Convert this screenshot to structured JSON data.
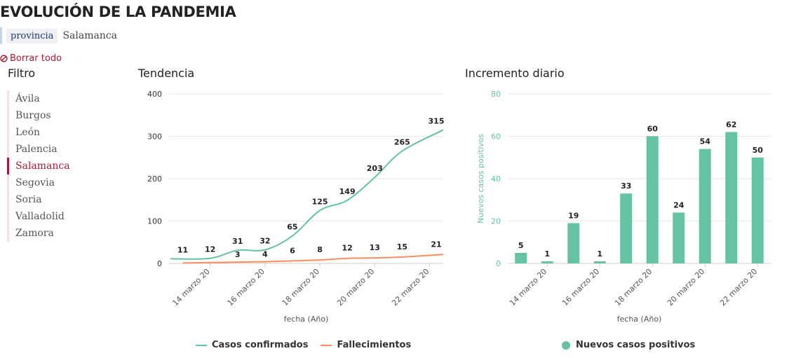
{
  "page": {
    "title": "EVOLUCIÓN DE LA PANDEMIA",
    "filter_chip": {
      "key": "provincia",
      "value": "Salamanca"
    },
    "clear_all": "Borrar todo",
    "filter_heading": "Filtro"
  },
  "provinces": [
    {
      "label": "Ávila",
      "active": false
    },
    {
      "label": "Burgos",
      "active": false
    },
    {
      "label": "León",
      "active": false
    },
    {
      "label": "Palencia",
      "active": false
    },
    {
      "label": "Salamanca",
      "active": true
    },
    {
      "label": "Segovia",
      "active": false
    },
    {
      "label": "Soria",
      "active": false
    },
    {
      "label": "Valladolid",
      "active": false
    },
    {
      "label": "Zamora",
      "active": false
    }
  ],
  "colors": {
    "cases": "#66c2a5",
    "deaths": "#fc8d62",
    "accent": "#b11632"
  },
  "chart_data": [
    {
      "type": "line",
      "title": "Tendencia",
      "xlabel": "fecha (Año)",
      "ylabel": "",
      "x_tick_labels": [
        "14 marzo 20",
        "16 marzo 20",
        "18 marzo 20",
        "20 marzo 20",
        "22 marzo 20"
      ],
      "ylim": [
        0,
        400
      ],
      "yticks": [
        0,
        100,
        200,
        300,
        400
      ],
      "grid": true,
      "legend_position": "bottom",
      "x": [
        "2020-03-13",
        "2020-03-14",
        "2020-03-15",
        "2020-03-16",
        "2020-03-17",
        "2020-03-18",
        "2020-03-19",
        "2020-03-20",
        "2020-03-21",
        "2020-03-22"
      ],
      "series": [
        {
          "name": "Casos confirmados",
          "values": [
            11,
            12,
            31,
            32,
            65,
            125,
            149,
            203,
            265,
            315
          ],
          "labels": [
            "11",
            "12",
            "31",
            "32",
            "65",
            "125",
            "149",
            "203",
            "265",
            "315"
          ]
        },
        {
          "name": "Fallecimientos",
          "values": [
            1,
            2,
            3,
            4,
            6,
            8,
            12,
            13,
            15,
            21
          ],
          "labels": [
            "",
            "",
            "3",
            "4",
            "6",
            "8",
            "12",
            "13",
            "15",
            "21"
          ]
        }
      ]
    },
    {
      "type": "bar",
      "title": "Incremento diario",
      "xlabel": "fecha (Año)",
      "ylabel": "Nuevos casos positivos",
      "x_tick_labels": [
        "14 marzo 20",
        "16 marzo 20",
        "18 marzo 20",
        "20 marzo 20",
        "22 marzo 20"
      ],
      "ylim": [
        0,
        80
      ],
      "yticks": [
        0,
        20,
        40,
        60,
        80
      ],
      "grid": true,
      "legend_position": "bottom",
      "x": [
        "2020-03-13",
        "2020-03-14",
        "2020-03-15",
        "2020-03-16",
        "2020-03-17",
        "2020-03-18",
        "2020-03-19",
        "2020-03-20",
        "2020-03-21",
        "2020-03-22"
      ],
      "series": [
        {
          "name": "Nuevos casos positivos",
          "values": [
            5,
            1,
            19,
            1,
            33,
            60,
            24,
            54,
            62,
            50
          ]
        }
      ]
    }
  ]
}
